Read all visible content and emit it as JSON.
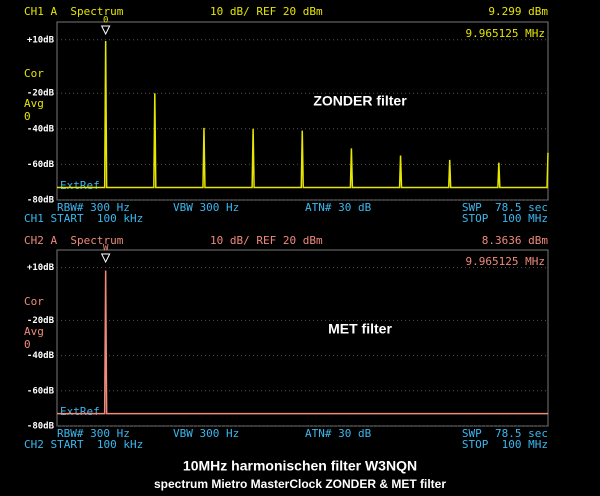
{
  "chart_data": [
    {
      "type": "line",
      "channel": "CH1 A  Spectrum",
      "scale": "10 dB/ REF 20 dBm",
      "marker_level": "9.299 dBm",
      "marker_freq": "9.965125 MHz",
      "marker_label": "0",
      "side_labels": [
        "Cor",
        "Avg",
        "0"
      ],
      "ref_label": "ExtRef",
      "annotation": "ZONDER filter",
      "settings": [
        "RBW# 300 Hz",
        "VBW 300 Hz",
        "ATN# 30 dB",
        "SWP  78.5 sec"
      ],
      "start": "CH1 START  100 kHz",
      "stop": "STOP  100 MHz",
      "x": [
        0.1,
        9.8,
        10,
        10.2,
        19.8,
        20,
        20.2,
        29.8,
        30,
        30.2,
        39.8,
        40,
        40.2,
        49.8,
        50,
        50.2,
        59.8,
        60,
        60.2,
        69.8,
        70,
        70.2,
        79.8,
        80,
        80.2,
        89.8,
        90,
        90.2,
        99.8,
        100
      ],
      "series": [
        {
          "color": "#e6e600",
          "values": [
            -73,
            -73,
            9.3,
            -73,
            -73,
            -20,
            -73,
            -73,
            -39.5,
            -73,
            -73,
            -40,
            -73,
            -73,
            -41,
            -73,
            -73,
            -51,
            -73,
            -73,
            -55,
            -73,
            -73,
            -57.5,
            -73,
            -73,
            -59,
            -73,
            -73,
            -53.5
          ]
        }
      ],
      "xlim": [
        0.1,
        100
      ],
      "ylim": [
        -80,
        20
      ],
      "yticks": [
        {
          "value": 10,
          "label": "+10dB"
        },
        {
          "value": -20,
          "label": "-20dB"
        },
        {
          "value": -40,
          "label": "-40dB"
        },
        {
          "value": -60,
          "label": "-60dB"
        },
        {
          "value": -80,
          "label": "-80dB"
        }
      ],
      "grid": true
    },
    {
      "type": "line",
      "channel": "CH2 A  Spectrum",
      "scale": "10 dB/ REF 20 dBm",
      "marker_level": "8.3636 dBm",
      "marker_freq": "9.965125 MHz",
      "marker_label": "W",
      "side_labels": [
        "Cor",
        "Avg",
        "0"
      ],
      "ref_label": "ExtRef",
      "annotation": "MET filter",
      "settings": [
        "RBW# 300 Hz",
        "VBW 300 Hz",
        "ATN# 30 dB",
        "SWP  78.5 sec"
      ],
      "start": "CH2 START  100 kHz",
      "stop": "STOP  100 MHz",
      "x": [
        0.1,
        9.8,
        10,
        10.2,
        100
      ],
      "series": [
        {
          "color": "#f08a7a",
          "values": [
            -73,
            -73,
            8.36,
            -73,
            -73
          ]
        }
      ],
      "xlim": [
        0.1,
        100
      ],
      "ylim": [
        -80,
        20
      ],
      "yticks": [
        {
          "value": 10,
          "label": "+10dB"
        },
        {
          "value": -20,
          "label": "-20dB"
        },
        {
          "value": -40,
          "label": "-40dB"
        },
        {
          "value": -60,
          "label": "-60dB"
        },
        {
          "value": -80,
          "label": "-80dB"
        }
      ],
      "grid": true
    }
  ],
  "footer": {
    "title": "10MHz harmonischen filter W3NQN",
    "subtitle": "spectrum Mietro MasterClock ZONDER & MET filter"
  }
}
